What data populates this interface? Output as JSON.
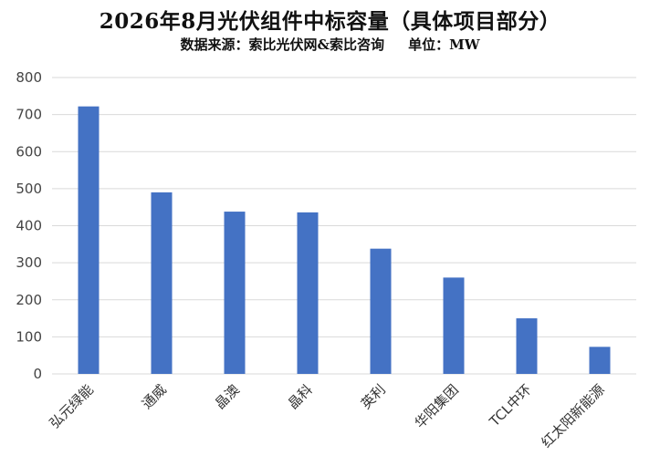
{
  "chart_data": {
    "type": "bar",
    "title": "2026年8月光伏组件中标容量（具体项目部分）",
    "subtitle": "数据来源：索比光伏网&索比咨询     单位：MW",
    "xlabel": "",
    "ylabel": "",
    "categories": [
      "弘元绿能",
      "通威",
      "晶澳",
      "晶科",
      "英利",
      "华阳集团",
      "TCL中环",
      "红太阳新能源"
    ],
    "values": [
      722,
      490,
      438,
      436,
      338,
      260,
      150,
      73
    ],
    "ylim": [
      0,
      800
    ],
    "yticks": [
      0,
      100,
      200,
      300,
      400,
      500,
      600,
      700,
      800
    ],
    "grid": true,
    "bar_color": "#4472C4",
    "grid_color": "#d9d9d9"
  }
}
